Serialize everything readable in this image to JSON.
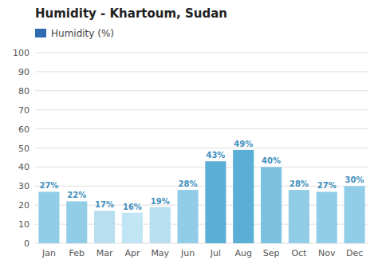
{
  "chart_data": {
    "type": "bar",
    "title": "Humidity - Khartoum, Sudan",
    "categories": [
      "Jan",
      "Feb",
      "Mar",
      "Apr",
      "May",
      "Jun",
      "Jul",
      "Aug",
      "Sep",
      "Oct",
      "Nov",
      "Dec"
    ],
    "series": [
      {
        "name": "Humidity (%)",
        "color": "#2E6BB0",
        "colors": [
          "#92CDE8",
          "#92CDE8",
          "#B8DFF0",
          "#C2E5F5",
          "#B8DFF0",
          "#92CDE8",
          "#5BAED6",
          "#5BAED6",
          "#7DC0E0",
          "#92CDE8",
          "#92CDE8",
          "#92CDE8"
        ],
        "values": [
          27,
          22,
          17,
          16,
          19,
          28,
          43,
          49,
          40,
          28,
          27,
          30
        ],
        "value_labels": [
          "27%",
          "22%",
          "17%",
          "16%",
          "19%",
          "28%",
          "43%",
          "49%",
          "40%",
          "28%",
          "27%",
          "30%"
        ]
      }
    ],
    "ylim": [
      0,
      100
    ],
    "yticks": [
      0,
      10,
      20,
      30,
      40,
      50,
      60,
      70,
      80,
      90,
      100
    ],
    "grid": true,
    "legend": "top",
    "data_labels": true
  }
}
